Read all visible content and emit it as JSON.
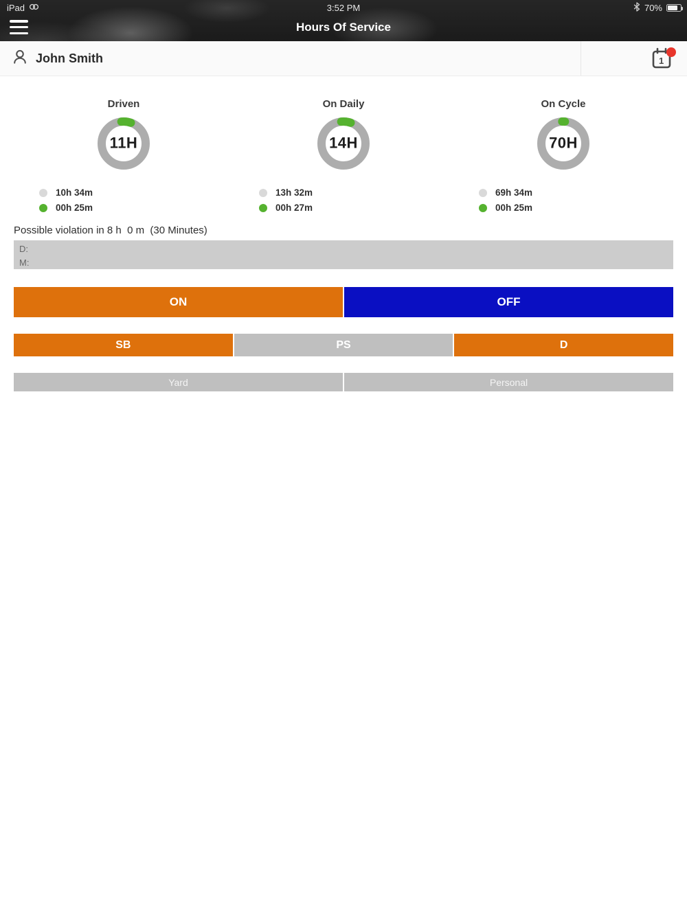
{
  "status_bar": {
    "device_label": "iPad",
    "time": "3:52 PM",
    "battery_percent": "70%",
    "battery_level": 70
  },
  "nav": {
    "title": "Hours Of Service"
  },
  "user_bar": {
    "name": "John Smith",
    "calendar_day": "1"
  },
  "gauges": [
    {
      "label": "Driven",
      "value": "11H",
      "remaining": "10h 34m",
      "used": "00h 25m",
      "progress_percent": 7
    },
    {
      "label": "On Daily",
      "value": "14H",
      "remaining": "13h 32m",
      "used": "00h 27m",
      "progress_percent": 7
    },
    {
      "label": "On Cycle",
      "value": "70H",
      "remaining": "69h 34m",
      "used": "00h 25m",
      "progress_percent": 2
    }
  ],
  "violation_text": "Possible violation in 8 h  0 m  (30 Minutes)",
  "note_box": {
    "d_label": "D:",
    "m_label": "M:"
  },
  "duty_controls": {
    "on": "ON",
    "off": "OFF",
    "sb": "SB",
    "ps": "PS",
    "d": "D",
    "yard": "Yard",
    "personal": "Personal"
  },
  "colors": {
    "orange": "#de710c",
    "blue": "#0a0fc2",
    "gray_button": "#bfbfbf",
    "green": "#55b22f",
    "ring": "#adadad",
    "legend_inactive": "#d9d9d9",
    "badge_red": "#e8352b"
  }
}
